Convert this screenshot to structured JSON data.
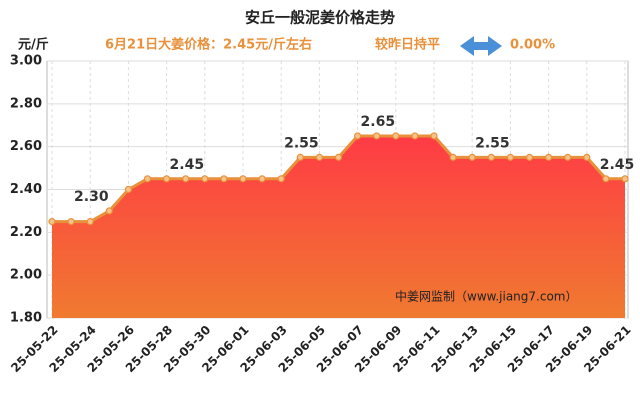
{
  "chart_data": {
    "type": "area",
    "title": "安丘一般泥姜价格走势",
    "subtitle": "6月21日大姜价格：2.45元/斤左右",
    "compare_text": "较昨日持平",
    "change": "0.00%",
    "y_unit": "元/斤",
    "watermark": "中姜网监制（www.jiang7.com）",
    "x": [
      "25-05-22",
      null,
      "25-05-24",
      null,
      "25-05-26",
      null,
      "25-05-28",
      null,
      "25-05-30",
      null,
      "25-06-01",
      null,
      "25-06-03",
      null,
      "25-06-05",
      null,
      "25-06-07",
      null,
      "25-06-09",
      null,
      "25-06-11",
      null,
      "25-06-13",
      null,
      "25-06-15",
      null,
      "25-06-17",
      null,
      "25-06-19",
      null,
      "25-06-21"
    ],
    "values": [
      2.25,
      2.25,
      2.25,
      2.3,
      2.4,
      2.45,
      2.45,
      2.45,
      2.45,
      2.45,
      2.45,
      2.45,
      2.45,
      2.55,
      2.55,
      2.55,
      2.65,
      2.65,
      2.65,
      2.65,
      2.65,
      2.55,
      2.55,
      2.55,
      2.55,
      2.55,
      2.55,
      2.55,
      2.55,
      2.45,
      2.45
    ],
    "value_labels": [
      null,
      null,
      null,
      "2.30",
      null,
      null,
      null,
      null,
      "2.45",
      null,
      null,
      null,
      null,
      null,
      "2.55",
      null,
      null,
      null,
      "2.65",
      null,
      null,
      null,
      null,
      null,
      "2.55",
      null,
      null,
      null,
      null,
      null,
      "2.45"
    ],
    "color": "#e8903a",
    "area_colors": [
      "#ff3b45",
      "#f07a30"
    ],
    "ylim": [
      1.8,
      3.0
    ],
    "yticks": [
      {
        "value": 1.8,
        "label": "1.80"
      },
      {
        "value": 2.0,
        "label": "2.00"
      },
      {
        "value": 2.2,
        "label": "2.20"
      },
      {
        "value": 2.4,
        "label": "2.40"
      },
      {
        "value": 2.6,
        "label": "2.60"
      },
      {
        "value": 2.8,
        "label": "2.80"
      },
      {
        "value": 3.0,
        "label": "3.00"
      }
    ],
    "grid": true
  }
}
